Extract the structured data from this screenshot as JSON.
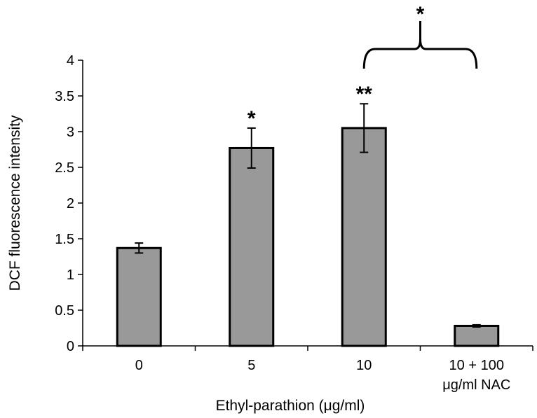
{
  "chart_data": {
    "type": "bar",
    "xlabel": "Ethyl-parathion (μg/ml)",
    "ylabel": "DCF fluorescence intensity",
    "ylim": [
      0,
      4
    ],
    "yticks": [
      "0",
      "0.5",
      "1",
      "1.5",
      "2",
      "2.5",
      "3",
      "3.5",
      "4"
    ],
    "categories": [
      {
        "lines": [
          "0"
        ]
      },
      {
        "lines": [
          "5"
        ]
      },
      {
        "lines": [
          "10"
        ]
      },
      {
        "lines": [
          "10 + 100",
          "μg/ml NAC"
        ]
      }
    ],
    "values": [
      1.37,
      2.77,
      3.05,
      0.28
    ],
    "errors": [
      0.07,
      0.28,
      0.34,
      0.015
    ],
    "significance": [
      "",
      "*",
      "**",
      ""
    ],
    "comparison": {
      "from": 2,
      "to": 3,
      "label": "*"
    },
    "bar_color": "#999999",
    "bar_edge_color": "#000000",
    "grid": false,
    "legend": "none"
  }
}
